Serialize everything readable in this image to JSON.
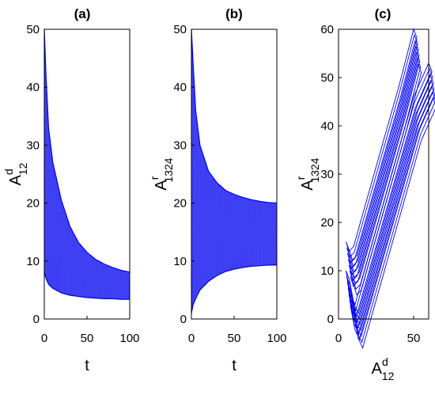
{
  "figure": {
    "line_color": "#0000ff",
    "fill_color": "#0000ee",
    "fill_light": "#5f5ff7",
    "axis_color": "#000000"
  },
  "chart_data": [
    {
      "type": "line",
      "title": "(a)",
      "xlabel": "t",
      "ylabel": {
        "base": "A",
        "sup": "d",
        "sub": "12"
      },
      "xlim": [
        0,
        100
      ],
      "ylim": [
        0,
        50
      ],
      "xticks": [
        "0",
        "50",
        "100"
      ],
      "yticks": [
        "0",
        "10",
        "20",
        "30",
        "40",
        "50"
      ],
      "grid": false,
      "series": [
        {
          "style": "oscillation-envelope",
          "t": [
            0,
            2,
            5,
            10,
            20,
            30,
            40,
            50,
            60,
            70,
            80,
            90,
            100
          ],
          "upper": [
            50,
            42,
            33,
            27,
            20.5,
            16,
            13.2,
            11.5,
            10.3,
            9.5,
            8.9,
            8.4,
            8.1
          ],
          "lower": [
            8,
            7,
            6,
            5.3,
            4.5,
            4.1,
            3.9,
            3.7,
            3.6,
            3.5,
            3.5,
            3.4,
            3.4
          ]
        }
      ]
    },
    {
      "type": "line",
      "title": "(b)",
      "xlabel": "t",
      "ylabel": {
        "base": "A",
        "sup": "r",
        "sub": "1324"
      },
      "xlim": [
        0,
        100
      ],
      "ylim": [
        0,
        50
      ],
      "xticks": [
        "0",
        "50",
        "100"
      ],
      "yticks": [
        "0",
        "10",
        "20",
        "30",
        "40",
        "50"
      ],
      "grid": false,
      "series": [
        {
          "style": "oscillation-envelope",
          "t": [
            0,
            2,
            5,
            10,
            20,
            30,
            40,
            50,
            60,
            70,
            80,
            90,
            100
          ],
          "upper": [
            50,
            44,
            36,
            30,
            25.5,
            23.5,
            22.2,
            21.5,
            21,
            20.6,
            20.3,
            20.1,
            20
          ],
          "lower": [
            1,
            2.5,
            3.5,
            5,
            6.5,
            7.5,
            8.2,
            8.6,
            8.9,
            9.1,
            9.2,
            9.3,
            9.3
          ]
        }
      ]
    },
    {
      "type": "line",
      "title": "(c)",
      "xlabel": {
        "base": "A",
        "sup": "d",
        "sub": "12"
      },
      "ylabel": {
        "base": "A",
        "sup": "r",
        "sub": "1324"
      },
      "xlim": [
        0,
        60
      ],
      "ylim": [
        0,
        60
      ],
      "xticks": [
        "0",
        "50"
      ],
      "yticks": [
        "0",
        "10",
        "20",
        "30",
        "40",
        "50",
        "60"
      ],
      "grid": false,
      "series": [
        {
          "style": "phase-loops",
          "branch_upper": {
            "x": [
              5,
              7,
              10,
              20,
              30,
              40,
              50
            ],
            "y": [
              16,
              14,
              15,
              26,
              37,
              48,
              60
            ]
          },
          "branch_lower": {
            "x": [
              5,
              8,
              11,
              20,
              30,
              40,
              50,
              60
            ],
            "y": [
              10,
              5,
              3,
              13,
              24,
              35,
              46,
              53
            ]
          }
        }
      ]
    }
  ]
}
